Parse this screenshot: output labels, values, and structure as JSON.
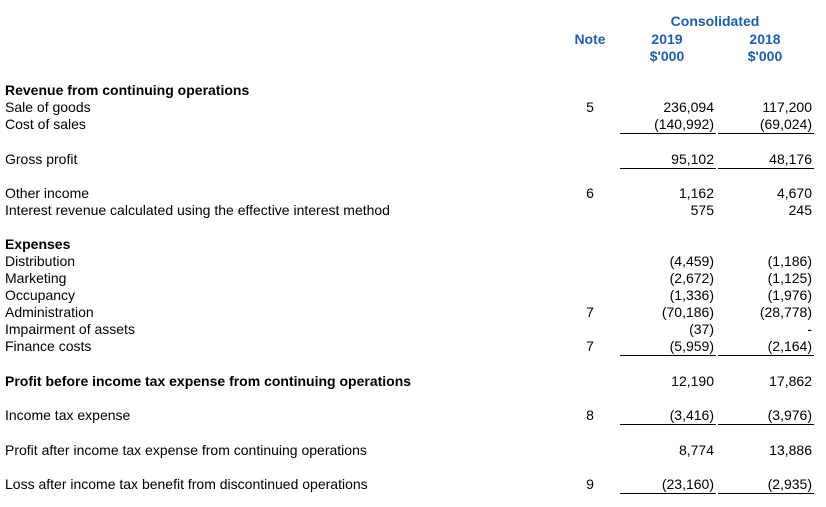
{
  "header": {
    "consolidated": "Consolidated",
    "note": "Note",
    "year_2019": "2019",
    "year_2018": "2018",
    "unit_2019": "$'000",
    "unit_2018": "$'000"
  },
  "rows": {
    "revenue_heading": "Revenue from continuing operations",
    "sale_of_goods": {
      "label": "Sale of goods",
      "note": "5",
      "y2019": "236,094",
      "y2018": "117,200"
    },
    "cost_of_sales": {
      "label": "Cost of sales",
      "y2019": "(140,992)",
      "y2018": "(69,024)"
    },
    "gross_profit": {
      "label": "Gross profit",
      "y2019": "95,102",
      "y2018": "48,176"
    },
    "other_income": {
      "label": "Other income",
      "note": "6",
      "y2019": "1,162",
      "y2018": "4,670"
    },
    "interest_revenue": {
      "label": "Interest revenue calculated using the effective interest method",
      "y2019": "575",
      "y2018": "245"
    },
    "expenses_heading": "Expenses",
    "distribution": {
      "label": "Distribution",
      "y2019": "(4,459)",
      "y2018": "(1,186)"
    },
    "marketing": {
      "label": "Marketing",
      "y2019": "(2,672)",
      "y2018": "(1,125)"
    },
    "occupancy": {
      "label": "Occupancy",
      "y2019": "(1,336)",
      "y2018": "(1,976)"
    },
    "administration": {
      "label": "Administration",
      "note": "7",
      "y2019": "(70,186)",
      "y2018": "(28,778)"
    },
    "impairment": {
      "label": "Impairment of assets",
      "y2019": "(37)",
      "y2018": "-"
    },
    "finance_costs": {
      "label": "Finance costs",
      "note": "7",
      "y2019": "(5,959)",
      "y2018": "(2,164)"
    },
    "profit_before_tax": {
      "label": "Profit before income tax expense from continuing operations",
      "y2019": "12,190",
      "y2018": "17,862"
    },
    "income_tax": {
      "label": "Income tax expense",
      "note": "8",
      "y2019": "(3,416)",
      "y2018": "(3,976)"
    },
    "profit_after_tax": {
      "label": "Profit after income tax expense from continuing operations",
      "y2019": "8,774",
      "y2018": "13,886"
    },
    "loss_discontinued": {
      "label": "Loss after income tax benefit from discontinued operations",
      "note": "9",
      "y2019": "(23,160)",
      "y2018": "(2,935)"
    }
  }
}
